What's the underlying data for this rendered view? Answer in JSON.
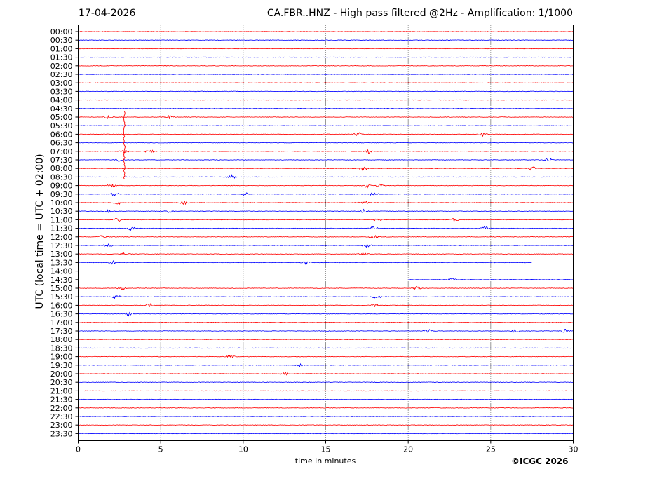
{
  "header": {
    "date": "17-04-2026",
    "title": "CA.FBR..HNZ - High pass filtered @2Hz - Amplification: 1/1000"
  },
  "footer": {
    "copyright": "©ICGC 2026"
  },
  "colors": {
    "trace_a": "#ff0000",
    "trace_b": "#0000ff",
    "grid": "#000000"
  },
  "chart_data": {
    "type": "line",
    "title": "CA.FBR..HNZ - High pass filtered @2Hz - Amplification: 1/1000",
    "xlabel": "time in minutes",
    "ylabel": "UTC (local time = UTC + 02:00)",
    "xlim": [
      0,
      30
    ],
    "x_ticks": [
      0,
      5,
      10,
      15,
      20,
      25,
      30
    ],
    "grid": "vertical dotted at 5-minute ticks",
    "y_ticks": [
      "00:00",
      "00:30",
      "01:00",
      "01:30",
      "02:00",
      "02:30",
      "03:00",
      "03:30",
      "04:00",
      "04:30",
      "05:00",
      "05:30",
      "06:00",
      "06:30",
      "07:00",
      "07:30",
      "08:00",
      "08:30",
      "09:00",
      "09:30",
      "10:00",
      "10:30",
      "11:00",
      "11:30",
      "12:00",
      "12:30",
      "13:00",
      "13:30",
      "14:00",
      "14:30",
      "15:00",
      "15:30",
      "16:00",
      "16:30",
      "17:00",
      "17:30",
      "18:00",
      "18:30",
      "19:00",
      "19:30",
      "20:00",
      "20:30",
      "21:00",
      "21:30",
      "22:00",
      "22:30",
      "23:00",
      "23:30"
    ],
    "trace_colors": [
      "red",
      "blue"
    ],
    "gaps": [
      {
        "row": "13:30",
        "ends_at_minute": 27.5
      },
      {
        "row": "14:00",
        "empty": true
      },
      {
        "row": "14:30",
        "starts_at_minute": 20
      }
    ],
    "events": [
      {
        "row": "05:00",
        "minutes": [
          1.8,
          5.5
        ]
      },
      {
        "row": "06:00",
        "minutes": [
          17.0,
          24.5
        ]
      },
      {
        "row": "07:00",
        "minutes": [
          2.8,
          4.3,
          17.6
        ]
      },
      {
        "row": "07:30",
        "minutes": [
          2.5,
          28.5
        ]
      },
      {
        "row": "08:00",
        "minutes": [
          17.3,
          27.5
        ]
      },
      {
        "row": "08:30",
        "minutes": [
          9.3
        ]
      },
      {
        "row": "09:00",
        "minutes": [
          2.0,
          17.5,
          18.2
        ]
      },
      {
        "row": "09:30",
        "minutes": [
          2.2,
          10.1,
          17.9
        ]
      },
      {
        "row": "10:00",
        "minutes": [
          2.4,
          6.4,
          17.3
        ]
      },
      {
        "row": "10:30",
        "minutes": [
          1.8,
          5.5,
          17.3
        ]
      },
      {
        "row": "11:00",
        "minutes": [
          2.4,
          18.2,
          22.8
        ]
      },
      {
        "row": "11:30",
        "minutes": [
          3.2,
          17.9,
          24.7
        ]
      },
      {
        "row": "12:00",
        "minutes": [
          1.5,
          17.9
        ]
      },
      {
        "row": "12:30",
        "minutes": [
          1.8,
          17.5
        ]
      },
      {
        "row": "13:00",
        "minutes": [
          2.8,
          17.3
        ]
      },
      {
        "row": "13:30",
        "minutes": [
          2.1,
          13.8
        ]
      },
      {
        "row": "14:30",
        "minutes": [
          22.7
        ]
      },
      {
        "row": "15:00",
        "minutes": [
          2.6,
          20.5
        ]
      },
      {
        "row": "15:30",
        "minutes": [
          2.3,
          18.1
        ]
      },
      {
        "row": "16:00",
        "minutes": [
          4.3,
          17.9
        ]
      },
      {
        "row": "16:30",
        "minutes": [
          3.1
        ]
      },
      {
        "row": "17:30",
        "minutes": [
          21.2,
          26.5,
          29.5
        ]
      },
      {
        "row": "19:00",
        "minutes": [
          9.2
        ]
      },
      {
        "row": "19:30",
        "minutes": [
          13.4
        ]
      },
      {
        "row": "20:00",
        "minutes": [
          12.5
        ]
      }
    ]
  }
}
